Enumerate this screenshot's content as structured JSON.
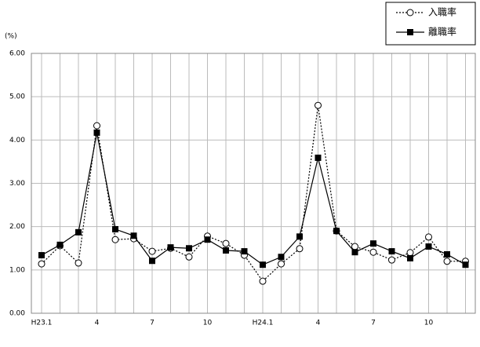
{
  "chart_data": {
    "type": "line",
    "unit_label": "(%)",
    "categories": [
      "H23.1",
      null,
      null,
      "4",
      null,
      null,
      "7",
      null,
      null,
      "10",
      null,
      null,
      "H24.1",
      null,
      null,
      "4",
      null,
      null,
      "7",
      null,
      null,
      "10",
      null,
      null
    ],
    "series": [
      {
        "name": "入職率",
        "color": "#000000",
        "marker": "circle",
        "dash": "dotted",
        "values": [
          1.14,
          1.56,
          1.16,
          4.33,
          1.7,
          1.72,
          1.43,
          1.5,
          1.3,
          1.78,
          1.61,
          1.34,
          0.74,
          1.14,
          1.49,
          4.8,
          1.9,
          1.54,
          1.41,
          1.23,
          1.4,
          1.76,
          1.2,
          1.2
        ]
      },
      {
        "name": "離職率",
        "color": "#000000",
        "marker": "square",
        "dash": "solid",
        "values": [
          1.34,
          1.58,
          1.87,
          4.17,
          1.94,
          1.79,
          1.21,
          1.52,
          1.5,
          1.7,
          1.45,
          1.43,
          1.12,
          1.3,
          1.77,
          3.59,
          1.9,
          1.41,
          1.61,
          1.43,
          1.27,
          1.54,
          1.36,
          1.12
        ]
      }
    ],
    "ylim": [
      0,
      6
    ],
    "yticks": [
      {
        "value": 0,
        "label": "0.00"
      },
      {
        "value": 1,
        "label": "1.00"
      },
      {
        "value": 2,
        "label": "2.00"
      },
      {
        "value": 3,
        "label": "3.00"
      },
      {
        "value": 4,
        "label": "4.00"
      },
      {
        "value": 5,
        "label": "5.00"
      },
      {
        "value": 6,
        "label": "6.00"
      }
    ],
    "grid": true
  }
}
